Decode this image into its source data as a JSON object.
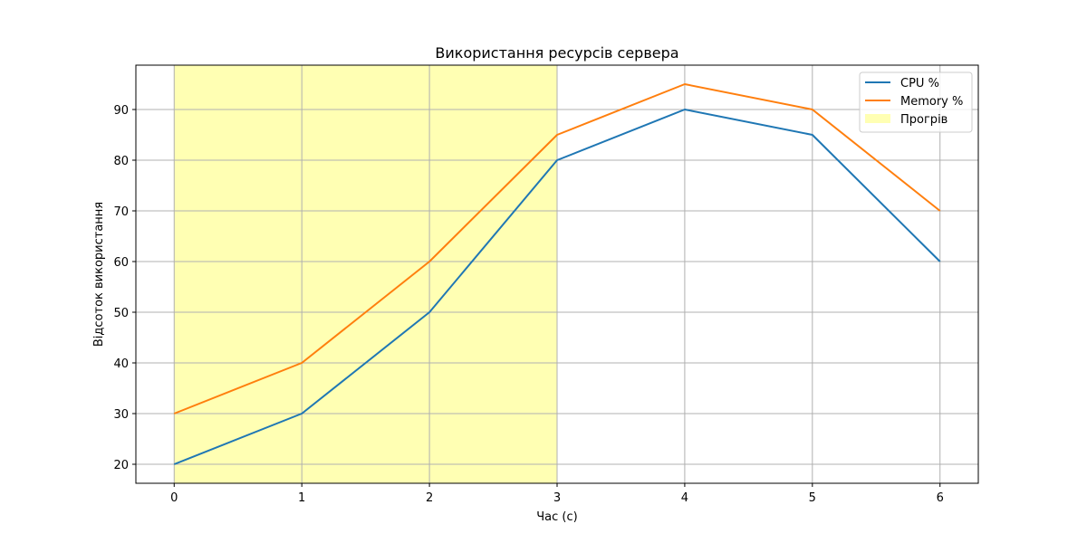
{
  "chart_data": {
    "type": "line",
    "title": "Використання ресурсів сервера",
    "xlabel": "Час (с)",
    "ylabel": "Відсоток використання",
    "x": [
      0,
      1,
      2,
      3,
      4,
      5,
      6
    ],
    "xlim": [
      -0.3,
      6.3
    ],
    "ylim": [
      16.25,
      98.75
    ],
    "x_ticks": [
      "0",
      "1",
      "2",
      "3",
      "4",
      "5",
      "6"
    ],
    "y_ticks": [
      "20",
      "30",
      "40",
      "50",
      "60",
      "70",
      "80",
      "90"
    ],
    "grid": true,
    "legend_position": "top-right",
    "series": [
      {
        "name": "CPU %",
        "values": [
          20,
          30,
          50,
          80,
          90,
          85,
          60
        ],
        "color": "#1f77b4"
      },
      {
        "name": "Memory %",
        "values": [
          30,
          40,
          60,
          85,
          95,
          90,
          70
        ],
        "color": "#ff7f0e"
      }
    ],
    "shaded_region": {
      "name": "Прогрів",
      "x_start": 0,
      "x_end": 3,
      "color": "#ffffb3"
    }
  }
}
